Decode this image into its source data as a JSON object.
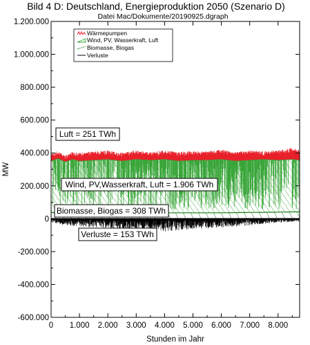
{
  "chart_data": {
    "type": "area",
    "title": "Bild 4 D: Deutschland, Energieproduktion 2050 (Szenario D)",
    "subtitle": "Datei Mac/Dokumente/20190925.dgraph",
    "xlabel": "Stunden im Jahr",
    "ylabel": "MW",
    "xlim": [
      0,
      8760
    ],
    "ylim": [
      -600000,
      1200000
    ],
    "x_ticks": [
      "0",
      "1.000",
      "2.000",
      "3.000",
      "4.000",
      "5.000",
      "6.000",
      "7.000",
      "8.000"
    ],
    "y_ticks": [
      "1.200.000",
      "1.000.000",
      "800.000",
      "600.000",
      "400.000",
      "200.000",
      "0",
      "-200.000",
      "-400.000",
      "-600.000"
    ],
    "x_tick_values": [
      0,
      1000,
      2000,
      3000,
      4000,
      5000,
      6000,
      7000,
      8000
    ],
    "y_tick_values": [
      1200000,
      1000000,
      800000,
      600000,
      400000,
      200000,
      0,
      -200000,
      -400000,
      -600000
    ],
    "grid": false,
    "legend_position": "top-left",
    "series": [
      {
        "name": "Wärmepumpen",
        "color": "#e8202a",
        "x": [
          0,
          250,
          500,
          750,
          1000,
          1500,
          2000,
          2500,
          3000,
          3500,
          4000,
          4500,
          5000,
          5500,
          6000,
          6500,
          7000,
          7500,
          8000,
          8500,
          8760
        ],
        "values": [
          375000,
          390000,
          365000,
          385000,
          380000,
          390000,
          395000,
          380000,
          395000,
          385000,
          395000,
          385000,
          390000,
          390000,
          400000,
          385000,
          395000,
          390000,
          395000,
          410000,
          400000
        ]
      },
      {
        "name": "Wind, PV, Wasserkraft, Luft",
        "color": "#3aa63a",
        "x": [
          0,
          250,
          500,
          750,
          1000,
          1500,
          2000,
          2500,
          3000,
          3500,
          4000,
          4500,
          5000,
          5500,
          6000,
          6500,
          7000,
          7500,
          8000,
          8500,
          8760
        ],
        "values": [
          350000,
          365000,
          345000,
          360000,
          350000,
          355000,
          360000,
          350000,
          360000,
          355000,
          360000,
          350000,
          355000,
          355000,
          360000,
          350000,
          355000,
          360000,
          355000,
          360000,
          355000
        ]
      },
      {
        "name": "Biomasse, Biogas",
        "color": "#1a7a1a",
        "x": [
          0,
          2000,
          4000,
          6000,
          8000,
          8760
        ],
        "values": [
          38000,
          37000,
          36000,
          36000,
          40000,
          42000
        ]
      },
      {
        "name": "Verluste",
        "color": "#000000",
        "x": [
          0,
          500,
          1000,
          2000,
          3000,
          4000,
          5000,
          6000,
          7000,
          8000,
          8760
        ],
        "values": [
          -15000,
          -25000,
          -30000,
          -35000,
          -45000,
          -50000,
          -40000,
          -35000,
          -25000,
          -15000,
          -10000
        ]
      }
    ],
    "annotations": [
      "Luft = 251 TWh",
      "Wind, PV,Wasserkraft, Luft = 1.906 TWh",
      "Biomasse, Biogas = 308 TWh",
      "Verluste = 153 TWh"
    ]
  },
  "colors": {
    "waermepumpen": "#e8202a",
    "wind": "#3aa63a",
    "biomasse": "#1a7a1a",
    "verluste": "#000000"
  }
}
